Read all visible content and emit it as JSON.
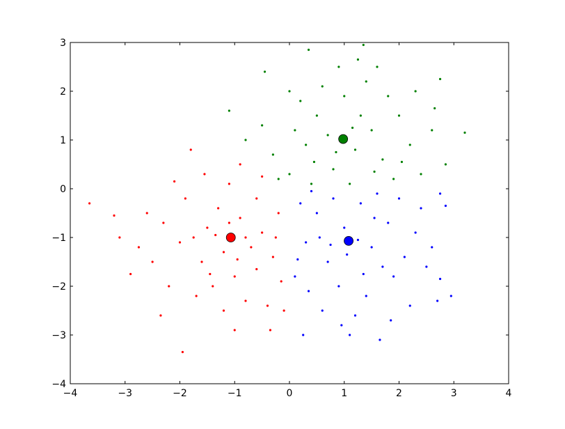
{
  "chart_data": {
    "type": "scatter",
    "xlim": [
      -4,
      4
    ],
    "ylim": [
      -4,
      3
    ],
    "xticks": [
      {
        "value": -4,
        "label": "−4"
      },
      {
        "value": -3,
        "label": "−3"
      },
      {
        "value": -2,
        "label": "−2"
      },
      {
        "value": -1,
        "label": "−1"
      },
      0,
      1,
      2,
      3,
      4
    ],
    "yticks": [
      {
        "value": -4,
        "label": "−4"
      },
      {
        "value": -3,
        "label": "−3"
      },
      {
        "value": -2,
        "label": "−2"
      },
      {
        "value": -1,
        "label": "−1"
      },
      0,
      1,
      2,
      3
    ],
    "series": [
      {
        "color": "#ff0000",
        "x": [
          -3.65,
          -3.2,
          -2.9,
          -1.95,
          -1.8,
          -2.35,
          -0.35,
          -1.5,
          -1.2,
          -0.9,
          -0.7,
          -1.3,
          -1.6,
          -0.5,
          -0.3,
          -1.0,
          -1.4,
          -0.8,
          -2.0,
          -2.3,
          -1.9,
          -1.1,
          -0.6,
          -0.2,
          -0.15,
          -0.4,
          -1.2,
          -1.7,
          -2.5,
          -2.6,
          -2.1,
          -0.9,
          -0.5,
          -1.35,
          -0.95,
          -1.75,
          -0.25,
          -0.6,
          -1.55,
          -2.75,
          -3.1,
          -1.0,
          -0.1,
          -2.2,
          -1.45,
          -0.8,
          -1.1
        ],
        "y": [
          -0.3,
          -0.55,
          -1.75,
          -3.35,
          0.8,
          -2.6,
          -2.9,
          -0.8,
          -1.3,
          -0.6,
          -1.2,
          -0.4,
          -1.5,
          -0.9,
          -1.4,
          -1.8,
          -2.0,
          -2.3,
          -1.1,
          -0.7,
          -0.2,
          0.1,
          -0.2,
          -0.5,
          -1.9,
          -2.4,
          -2.5,
          -2.2,
          -1.5,
          -0.5,
          0.15,
          0.5,
          0.25,
          -0.95,
          -1.45,
          -1.0,
          -1.0,
          -1.65,
          0.3,
          -1.2,
          -1.0,
          -2.9,
          -2.5,
          -2.0,
          -1.75,
          -1.0,
          -0.7
        ]
      },
      {
        "color": "#008000",
        "x": [
          1.35,
          0.35,
          -0.45,
          -1.1,
          3.2,
          2.75,
          2.65,
          2.85,
          0.0,
          0.5,
          1.2,
          0.8,
          1.5,
          1.7,
          0.3,
          1.0,
          1.4,
          0.6,
          2.0,
          2.2,
          2.4,
          0.1,
          -0.3,
          -0.5,
          0.9,
          1.6,
          2.3,
          1.9,
          1.1,
          0.4,
          -0.2,
          0.2,
          1.3,
          0.7,
          1.8,
          2.6,
          0.0,
          -0.8,
          1.15,
          0.85,
          1.55,
          2.05,
          0.45,
          1.25
        ],
        "y": [
          2.95,
          2.85,
          2.4,
          1.6,
          1.15,
          2.25,
          1.65,
          0.5,
          0.3,
          1.5,
          0.8,
          0.4,
          1.2,
          0.6,
          0.9,
          1.9,
          2.2,
          2.1,
          1.5,
          0.9,
          0.3,
          1.2,
          0.7,
          1.3,
          2.5,
          2.5,
          2.0,
          0.2,
          0.1,
          0.1,
          0.2,
          1.8,
          1.5,
          1.1,
          1.9,
          1.2,
          2.0,
          1.0,
          1.25,
          0.75,
          0.35,
          0.55,
          0.55,
          2.65
        ]
      },
      {
        "color": "#0000ff",
        "x": [
          2.95,
          2.7,
          1.65,
          1.1,
          0.25,
          2.75,
          2.85,
          2.75,
          0.5,
          1.0,
          1.5,
          0.7,
          1.3,
          1.8,
          2.1,
          0.3,
          0.9,
          1.4,
          1.9,
          2.3,
          0.2,
          0.6,
          1.2,
          2.2,
          0.1,
          1.6,
          0.8,
          2.4,
          1.05,
          1.25,
          0.55,
          1.7,
          2.5,
          0.35,
          0.95,
          1.85,
          2.0,
          0.4,
          1.55,
          0.75,
          2.6,
          1.35,
          0.15
        ],
        "y": [
          -2.2,
          -2.3,
          -3.1,
          -3.0,
          -3.0,
          -1.85,
          -0.35,
          -0.1,
          -0.5,
          -0.8,
          -1.2,
          -1.5,
          -0.3,
          -0.7,
          -1.4,
          -1.1,
          -2.0,
          -2.2,
          -1.8,
          -0.9,
          -0.3,
          -2.5,
          -2.6,
          -2.4,
          -1.8,
          -0.1,
          -0.2,
          -0.4,
          -1.35,
          -1.05,
          -1.0,
          -1.6,
          -1.6,
          -2.1,
          -2.8,
          -2.7,
          -0.2,
          -0.05,
          -0.6,
          -1.15,
          -1.2,
          -1.75,
          -1.45
        ]
      }
    ],
    "centroids": {
      "x": [
        -1.07,
        0.98,
        1.08
      ],
      "y": [
        -1.0,
        1.02,
        -1.07
      ],
      "colors": [
        "#ff0000",
        "#008000",
        "#0000ff"
      ]
    }
  }
}
